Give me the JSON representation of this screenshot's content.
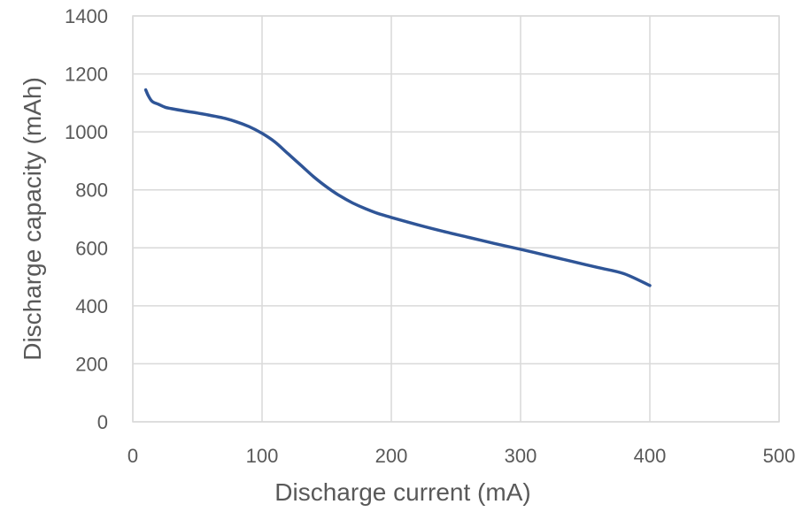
{
  "chart_data": {
    "type": "line",
    "title": "",
    "xlabel": "Discharge current (mA)",
    "ylabel": "Discharge capacity (mAh)",
    "xlim": [
      0,
      500
    ],
    "ylim": [
      0,
      1400
    ],
    "x_ticks": [
      "0",
      "100",
      "200",
      "300",
      "400",
      "500"
    ],
    "y_ticks": [
      "0",
      "200",
      "400",
      "600",
      "800",
      "1000",
      "1200",
      "1400"
    ],
    "grid": true,
    "legend": "none",
    "series": [
      {
        "color": "#2f5597",
        "x": [
          10,
          12,
          15,
          20,
          25,
          30,
          40,
          50,
          60,
          70,
          80,
          90,
          100,
          110,
          120,
          130,
          140,
          150,
          160,
          170,
          180,
          190,
          200,
          220,
          240,
          260,
          280,
          300,
          320,
          340,
          360,
          380,
          400
        ],
        "y": [
          1145,
          1125,
          1105,
          1095,
          1085,
          1080,
          1072,
          1065,
          1057,
          1048,
          1035,
          1018,
          995,
          965,
          925,
          885,
          845,
          810,
          780,
          755,
          735,
          718,
          705,
          680,
          657,
          636,
          615,
          595,
          574,
          553,
          532,
          511,
          470
        ]
      }
    ]
  }
}
